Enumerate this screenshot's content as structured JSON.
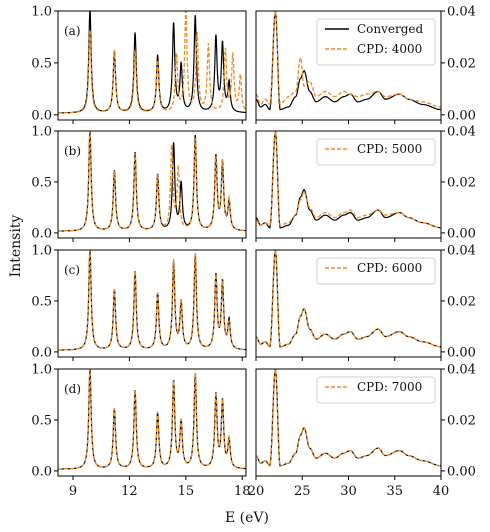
{
  "chart_data": {
    "type": "line",
    "xlabel": "E (eV)",
    "ylabel": "Intensity",
    "left_xlim": [
      8.2,
      18.2
    ],
    "right_xlim": [
      20,
      40
    ],
    "left_ylim": [
      -0.05,
      1.0
    ],
    "right_ylim": [
      -0.002,
      0.04
    ],
    "left_xticks": [
      9,
      12,
      15,
      18
    ],
    "right_xticks": [
      20,
      25,
      30,
      35,
      40
    ],
    "left_yticks": [
      "0.0",
      "0.5",
      "1.0"
    ],
    "right_yticks": [
      "0.00",
      "0.02",
      "0.04"
    ],
    "colors": {
      "converged": "#000000",
      "cpd": "#f08a24"
    },
    "grid": false,
    "reference_series": {
      "name": "Converged",
      "left_peaks": [
        [
          9.9,
          1.0
        ],
        [
          11.2,
          0.59
        ],
        [
          12.3,
          0.77
        ],
        [
          13.5,
          0.55
        ],
        [
          14.35,
          0.85
        ],
        [
          14.75,
          0.45
        ],
        [
          15.5,
          0.93
        ],
        [
          16.6,
          0.72
        ],
        [
          16.95,
          0.65
        ],
        [
          17.3,
          0.28
        ]
      ],
      "right_points": [
        [
          20,
          0.006
        ],
        [
          20.5,
          0.003
        ],
        [
          21,
          0.004
        ],
        [
          21.5,
          0.002
        ],
        [
          22.1,
          0.04
        ],
        [
          22.6,
          0.002
        ],
        [
          23.5,
          0.003
        ],
        [
          24.3,
          0.007
        ],
        [
          24.8,
          0.014
        ],
        [
          25.2,
          0.017
        ],
        [
          25.8,
          0.009
        ],
        [
          26.5,
          0.005
        ],
        [
          27.5,
          0.007
        ],
        [
          28.5,
          0.005
        ],
        [
          29.5,
          0.007
        ],
        [
          30.2,
          0.008
        ],
        [
          31,
          0.005
        ],
        [
          32,
          0.006
        ],
        [
          33.2,
          0.009
        ],
        [
          34,
          0.006
        ],
        [
          35.5,
          0.008
        ],
        [
          36.5,
          0.006
        ],
        [
          38,
          0.004
        ],
        [
          40,
          0.002
        ]
      ]
    },
    "panels": [
      {
        "label": "(a)",
        "legend": [
          "Converged",
          "CPD: 4000"
        ],
        "cpd_name": "CPD: 4000",
        "left_peaks": [
          [
            9.9,
            0.8
          ],
          [
            11.2,
            0.6
          ],
          [
            12.3,
            0.6
          ],
          [
            13.5,
            0.5
          ],
          [
            14.5,
            0.55
          ],
          [
            15.0,
            0.98
          ],
          [
            15.6,
            0.75
          ],
          [
            16.2,
            0.65
          ],
          [
            17.1,
            0.6
          ],
          [
            17.5,
            0.55
          ],
          [
            17.9,
            0.35
          ]
        ],
        "right_points": [
          [
            20,
            0.008
          ],
          [
            20.5,
            0.004
          ],
          [
            21,
            0.006
          ],
          [
            21.5,
            0.004
          ],
          [
            22.1,
            0.04
          ],
          [
            22.6,
            0.004
          ],
          [
            23.5,
            0.007
          ],
          [
            24.3,
            0.009
          ],
          [
            24.8,
            0.022
          ],
          [
            25.2,
            0.011
          ],
          [
            25.8,
            0.013
          ],
          [
            26.5,
            0.007
          ],
          [
            27.5,
            0.009
          ],
          [
            28.5,
            0.007
          ],
          [
            29.5,
            0.009
          ],
          [
            30.2,
            0.008
          ],
          [
            31,
            0.007
          ],
          [
            32,
            0.008
          ],
          [
            33.2,
            0.009
          ],
          [
            34,
            0.007
          ],
          [
            35.5,
            0.008
          ],
          [
            36.5,
            0.006
          ],
          [
            38,
            0.005
          ],
          [
            40,
            0.003
          ]
        ]
      },
      {
        "label": "(b)",
        "legend": [
          "CPD: 5000"
        ],
        "cpd_name": "CPD: 5000",
        "left_peaks": [
          [
            9.9,
            1.0
          ],
          [
            11.2,
            0.58
          ],
          [
            12.3,
            0.76
          ],
          [
            13.5,
            0.54
          ],
          [
            14.25,
            0.82
          ],
          [
            14.6,
            0.6
          ],
          [
            15.5,
            0.9
          ],
          [
            16.6,
            0.7
          ],
          [
            16.95,
            0.66
          ],
          [
            17.3,
            0.3
          ]
        ],
        "right_points": [
          [
            20,
            0.005
          ],
          [
            20.5,
            0.003
          ],
          [
            21,
            0.004
          ],
          [
            21.5,
            0.003
          ],
          [
            22.1,
            0.04
          ],
          [
            22.6,
            0.003
          ],
          [
            23.5,
            0.004
          ],
          [
            24.3,
            0.007
          ],
          [
            24.8,
            0.013
          ],
          [
            25.2,
            0.016
          ],
          [
            25.8,
            0.01
          ],
          [
            26.5,
            0.006
          ],
          [
            27.5,
            0.008
          ],
          [
            28.5,
            0.006
          ],
          [
            29.5,
            0.008
          ],
          [
            30.2,
            0.009
          ],
          [
            31,
            0.006
          ],
          [
            32,
            0.007
          ],
          [
            33.2,
            0.009
          ],
          [
            34,
            0.007
          ],
          [
            35.5,
            0.008
          ],
          [
            36.5,
            0.006
          ],
          [
            38,
            0.004
          ],
          [
            40,
            0.002
          ]
        ]
      },
      {
        "label": "(c)",
        "legend": [
          "CPD: 6000"
        ],
        "cpd_name": "CPD: 6000",
        "left_peaks": [
          [
            9.9,
            1.0
          ],
          [
            11.2,
            0.59
          ],
          [
            12.3,
            0.77
          ],
          [
            13.5,
            0.55
          ],
          [
            14.35,
            0.87
          ],
          [
            14.75,
            0.46
          ],
          [
            15.5,
            0.94
          ],
          [
            16.6,
            0.71
          ],
          [
            16.95,
            0.64
          ],
          [
            17.3,
            0.25
          ]
        ],
        "right_points": [
          [
            20,
            0.006
          ],
          [
            20.5,
            0.003
          ],
          [
            21,
            0.004
          ],
          [
            21.5,
            0.002
          ],
          [
            22.1,
            0.04
          ],
          [
            22.6,
            0.002
          ],
          [
            23.5,
            0.003
          ],
          [
            24.3,
            0.007
          ],
          [
            24.8,
            0.014
          ],
          [
            25.2,
            0.017
          ],
          [
            25.8,
            0.009
          ],
          [
            26.5,
            0.005
          ],
          [
            27.5,
            0.007
          ],
          [
            28.5,
            0.005
          ],
          [
            29.5,
            0.007
          ],
          [
            30.2,
            0.008
          ],
          [
            31,
            0.005
          ],
          [
            32,
            0.006
          ],
          [
            33.2,
            0.009
          ],
          [
            34,
            0.006
          ],
          [
            35.5,
            0.008
          ],
          [
            36.5,
            0.006
          ],
          [
            38,
            0.004
          ],
          [
            40,
            0.002
          ]
        ]
      },
      {
        "label": "(d)",
        "legend": [
          "CPD: 7000"
        ],
        "cpd_name": "CPD: 7000",
        "left_peaks": [
          [
            9.9,
            1.0
          ],
          [
            11.2,
            0.59
          ],
          [
            12.3,
            0.77
          ],
          [
            13.5,
            0.55
          ],
          [
            14.35,
            0.85
          ],
          [
            14.75,
            0.45
          ],
          [
            15.5,
            0.93
          ],
          [
            16.6,
            0.72
          ],
          [
            16.95,
            0.65
          ],
          [
            17.3,
            0.28
          ]
        ],
        "right_points": [
          [
            20,
            0.006
          ],
          [
            20.5,
            0.003
          ],
          [
            21,
            0.004
          ],
          [
            21.5,
            0.002
          ],
          [
            22.1,
            0.04
          ],
          [
            22.6,
            0.002
          ],
          [
            23.5,
            0.003
          ],
          [
            24.3,
            0.007
          ],
          [
            24.8,
            0.014
          ],
          [
            25.2,
            0.017
          ],
          [
            25.8,
            0.009
          ],
          [
            26.5,
            0.005
          ],
          [
            27.5,
            0.007
          ],
          [
            28.5,
            0.005
          ],
          [
            29.5,
            0.007
          ],
          [
            30.2,
            0.008
          ],
          [
            31,
            0.005
          ],
          [
            32,
            0.006
          ],
          [
            33.2,
            0.009
          ],
          [
            34,
            0.006
          ],
          [
            35.5,
            0.008
          ],
          [
            36.5,
            0.006
          ],
          [
            38,
            0.004
          ],
          [
            40,
            0.002
          ]
        ]
      }
    ]
  }
}
